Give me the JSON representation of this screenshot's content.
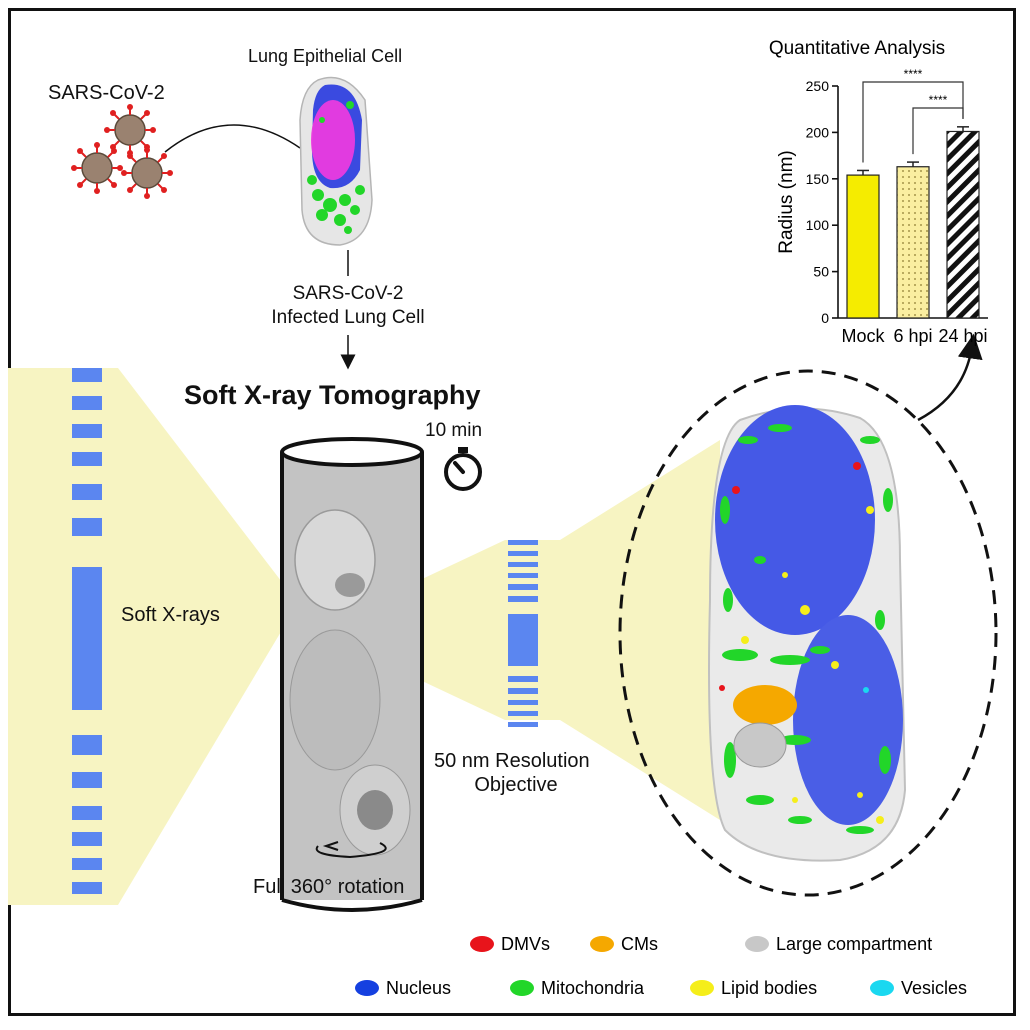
{
  "labels": {
    "virus": "SARS-CoV-2",
    "cell": "Lung Epithelial Cell",
    "infected_line1": "SARS-CoV-2",
    "infected_line2": "Infected Lung Cell",
    "sxt_title": "Soft X-ray Tomography",
    "time": "10 min",
    "soft_xrays": "Soft X-rays",
    "resolution_line1": "50 nm Resolution",
    "resolution_line2": "Objective",
    "rotation": "Full 360° rotation"
  },
  "chart_data": {
    "type": "bar",
    "title": "Quantitative Analysis",
    "ylabel": "Radius (nm)",
    "xlabel": "",
    "categories": [
      "Mock",
      "6 hpi",
      "24 hpi"
    ],
    "values": [
      154,
      163,
      201
    ],
    "errors": [
      5,
      5,
      5
    ],
    "ylim": [
      0,
      250
    ],
    "yticks": [
      0,
      50,
      100,
      150,
      200,
      250
    ],
    "significance": [
      {
        "from": "Mock",
        "to": "24 hpi",
        "label": "****"
      },
      {
        "from": "6 hpi",
        "to": "24 hpi",
        "label": "****"
      }
    ],
    "colors": [
      "#f5ec00",
      "#faeea0",
      "#111111"
    ]
  },
  "legend": [
    {
      "label": "DMVs",
      "color": "#e8141b"
    },
    {
      "label": "CMs",
      "color": "#f5a800"
    },
    {
      "label": "Large compartment",
      "color": "#c8c8c8"
    },
    {
      "label": "Nucleus",
      "color": "#1540e0"
    },
    {
      "label": "Mitochondria",
      "color": "#22d629"
    },
    {
      "label": "Lipid bodies",
      "color": "#f5ee1a"
    },
    {
      "label": "Vesicles",
      "color": "#1ad8f0"
    }
  ]
}
